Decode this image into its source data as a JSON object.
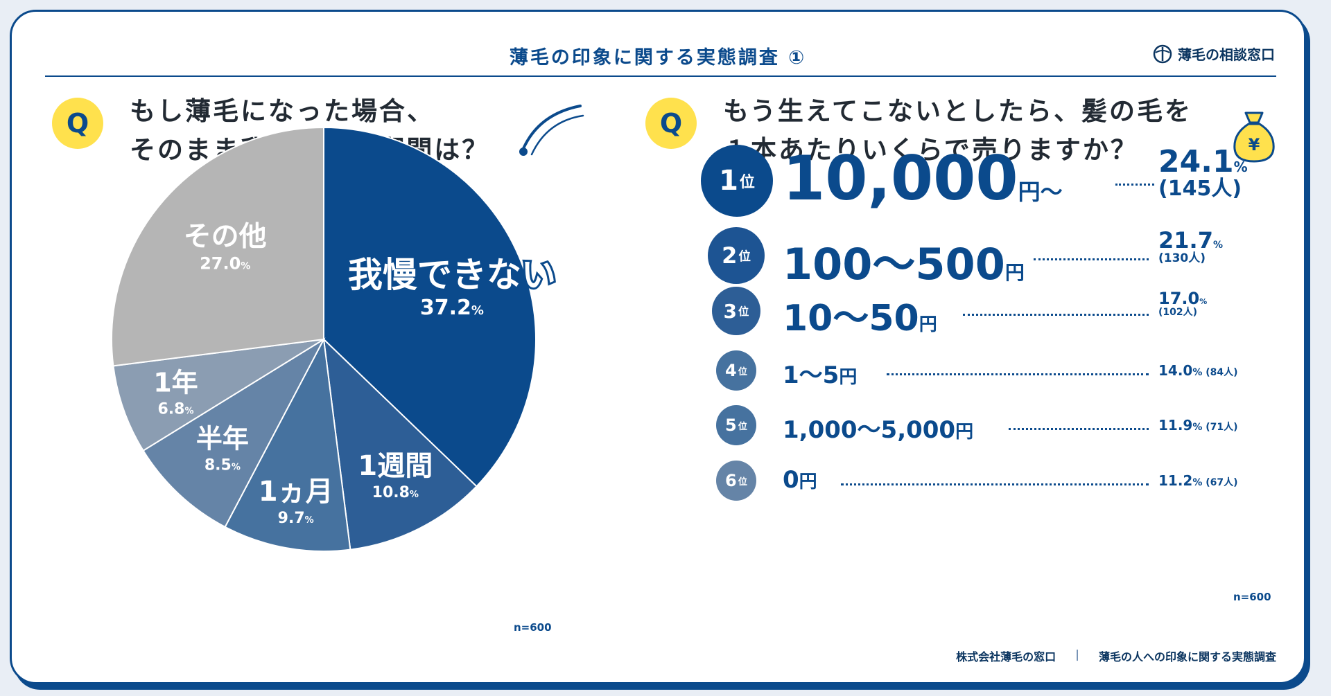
{
  "header": {
    "title": "薄毛の印象に関する実態調査 ①",
    "brand": "薄毛の相談窓口"
  },
  "left": {
    "q_badge": "Q",
    "question_line1": "もし薄毛になった場合、",
    "question_line2": "そのまま我慢できる期間は？",
    "n_note": "n=600"
  },
  "right": {
    "q_badge": "Q",
    "question_line1": "もう生えてこないとしたら、髪の毛を",
    "question_line2": "１本あたりいくらで売りますか？",
    "yen_symbol": "¥",
    "n_note": "n=600"
  },
  "chart_data": [
    {
      "type": "pie",
      "slices": [
        {
          "label": "我慢できない",
          "value": 37.2,
          "value_label": "37.2",
          "color": "#0b4a8c"
        },
        {
          "label": "1週間",
          "value": 10.8,
          "value_label": "10.8",
          "color": "#2d5e96"
        },
        {
          "label": "1ヵ月",
          "value": 9.7,
          "value_label": "9.7",
          "color": "#46729f"
        },
        {
          "label": "半年",
          "value": 8.5,
          "value_label": "8.5",
          "color": "#6584a7"
        },
        {
          "label": "1年",
          "value": 6.8,
          "value_label": "6.8",
          "color": "#8b9db2"
        },
        {
          "label": "その他",
          "value": 27.0,
          "value_label": "27.0",
          "color": "#b5b5b5"
        }
      ],
      "percent_sign": "%",
      "start": "12 o'clock, clockwise"
    },
    {
      "type": "table",
      "rows": [
        {
          "rank": "1",
          "rank_suffix": "位",
          "amount": "10,000",
          "unit": "円～",
          "percent": "24.1",
          "count": "(145人)"
        },
        {
          "rank": "2",
          "rank_suffix": "位",
          "amount": "100～500",
          "unit": "円",
          "percent": "21.7",
          "count": "(130人)"
        },
        {
          "rank": "3",
          "rank_suffix": "位",
          "amount": "10～50",
          "unit": "円",
          "percent": "17.0",
          "count": "(102人)"
        },
        {
          "rank": "4",
          "rank_suffix": "位",
          "amount": "1～5",
          "unit": "円",
          "percent": "14.0",
          "count": "(84人)"
        },
        {
          "rank": "5",
          "rank_suffix": "位",
          "amount": "1,000～5,000",
          "unit": "円",
          "percent": "11.9",
          "count": "(71人)"
        },
        {
          "rank": "6",
          "rank_suffix": "位",
          "amount": "0",
          "unit": "円",
          "percent": "11.2",
          "count": "(67人)"
        }
      ],
      "percent_sign": "%"
    }
  ],
  "footer": {
    "company": "株式会社薄毛の窓口",
    "separator": "|",
    "survey": "薄毛の人への印象に関する実態調査"
  },
  "colors": {
    "navy": "#0b4a8c",
    "yellow": "#ffe14d",
    "gray": "#b5b5b5"
  },
  "icons": [
    "hair-strand-icon",
    "money-bag-icon",
    "brand-logo-icon"
  ]
}
